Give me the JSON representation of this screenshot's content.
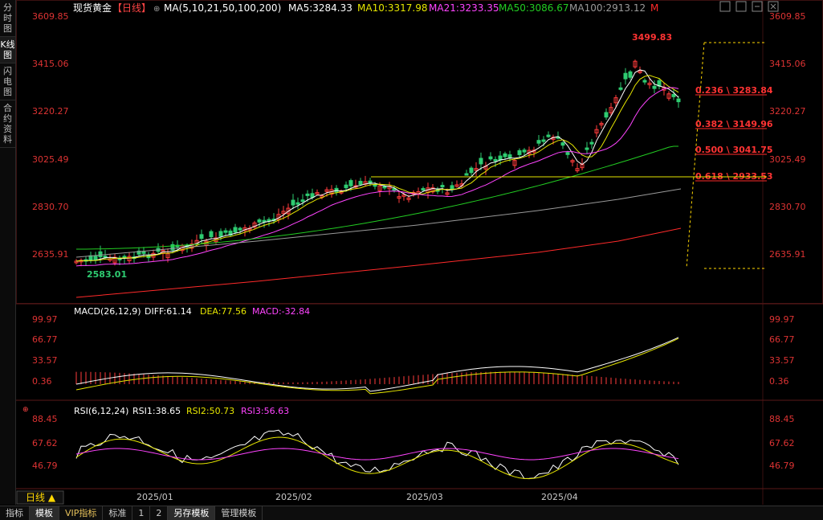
{
  "left_tabs": [
    "分时图",
    "K线图",
    "闪电图",
    "合约资料"
  ],
  "header": {
    "title": "现货黄金",
    "period_tag": "【日线】",
    "ma_label": "MA(5,10,21,50,100,200)",
    "ma5": "MA5:3284.33",
    "ma10": "MA10:3317.98",
    "ma21": "MA21:3233.35",
    "ma50": "MA50:3086.67",
    "ma100": "MA100:2913.12",
    "more": "M"
  },
  "colors": {
    "up": "#ff3b3b",
    "down": "#2ecc71",
    "ma5": "#ffffff",
    "ma10": "#e6e600",
    "ma21": "#ff44ff",
    "ma50": "#22cc22",
    "ma100": "#9a9a9a",
    "ma200": "#ff2a2a",
    "fib": "#ffd700"
  },
  "price_axis": [
    "3609.85",
    "3415.06",
    "3220.27",
    "3025.49",
    "2830.70",
    "2635.91"
  ],
  "price_labels": {
    "high": "3499.83",
    "low": "2583.01"
  },
  "fib_labels": [
    "0.236 \\ 3283.84",
    "0.382 \\ 3149.96",
    "0.500 \\ 3041.75",
    "0.618 \\ 2933.53"
  ],
  "macd": {
    "label": "MACD(26,12,9)",
    "diff": "DIFF:61.14",
    "dea": "DEA:77.56",
    "macd": "MACD:-32.84",
    "axis": [
      "99.97",
      "66.77",
      "33.57",
      "0.36"
    ]
  },
  "rsi": {
    "label": "RSI(6,12,24)",
    "rsi1": "RSI1:38.65",
    "rsi2": "RSI2:50.73",
    "rsi3": "RSI3:56.63",
    "axis": [
      "88.45",
      "67.62",
      "46.79"
    ]
  },
  "x_axis": [
    "2025/01",
    "2025/02",
    "2025/03",
    "2025/04"
  ],
  "period_button": "日线 ▲",
  "bottom_tabs": [
    "指标",
    "模板",
    "VIP指标",
    "标准",
    "1",
    "2",
    "另存模板",
    "管理模板"
  ],
  "icons": [
    "expand-icon",
    "grid-icon",
    "minus-icon",
    "close-icon"
  ]
}
